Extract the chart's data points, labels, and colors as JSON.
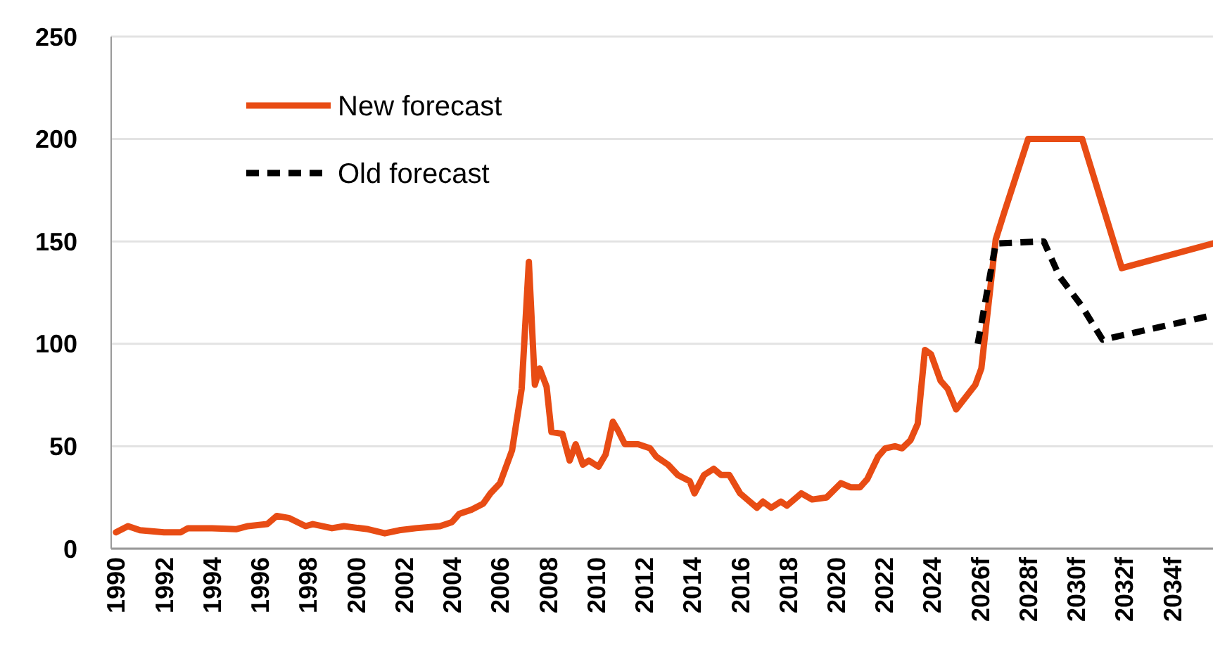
{
  "chart_data": {
    "type": "line",
    "xlim": [
      1989.8,
      2035.7
    ],
    "ylim": [
      0,
      250
    ],
    "yticks": [
      0,
      50,
      100,
      150,
      200,
      250
    ],
    "xticks": [
      1990,
      1992,
      1994,
      1996,
      1998,
      2000,
      2002,
      2004,
      2006,
      2008,
      2010,
      2012,
      2014,
      2016,
      2018,
      2020,
      2022,
      2024,
      {
        "value": 2026,
        "label": "2026f"
      },
      {
        "value": 2028,
        "label": "2028f"
      },
      {
        "value": 2030,
        "label": "2030f"
      },
      {
        "value": 2032,
        "label": "2032f"
      },
      {
        "value": 2034,
        "label": "2034f"
      }
    ],
    "grid": "y",
    "legend": "top left",
    "series": [
      {
        "name": "New forecast",
        "color": "#e84c14",
        "line_style": "solid",
        "x": [
          1990,
          1990.5,
          1991,
          1992,
          1992.7,
          1993,
          1994,
          1995,
          1995.5,
          1996.3,
          1996.7,
          1997.2,
          1997.9,
          1998.2,
          1999,
          1999.5,
          2000.5,
          2001.2,
          2001.8,
          2002.5,
          2003.5,
          2004,
          2004.3,
          2004.8,
          2005.3,
          2005.6,
          2006,
          2006.5,
          2006.9,
          2007.2,
          2007.45,
          2007.65,
          2007.94,
          2008.14,
          2008.6,
          2008.9,
          2009.15,
          2009.45,
          2009.7,
          2010.1,
          2010.4,
          2010.7,
          2010.9,
          2011.2,
          2011.75,
          2012.25,
          2012.5,
          2013,
          2013.4,
          2013.9,
          2014.1,
          2014.5,
          2014.9,
          2015.2,
          2015.55,
          2016,
          2016.3,
          2016.7,
          2016.95,
          2017.3,
          2017.7,
          2017.95,
          2018.25,
          2018.55,
          2019,
          2019.6,
          2020.2,
          2020.6,
          2021,
          2021.3,
          2021.75,
          2022.05,
          2022.45,
          2022.75,
          2023.1,
          2023.4,
          2023.7,
          2023.95,
          2024.35,
          2024.65,
          2025,
          2025.6,
          2025.8,
          2026.05,
          2026.65,
          2027,
          2028,
          2030.25,
          2031.9,
          2035.7
        ],
        "values": [
          8,
          11,
          9,
          8,
          8,
          10,
          10,
          9.5,
          11,
          12,
          16,
          15,
          11,
          12,
          10,
          11,
          9.5,
          7.5,
          9,
          10,
          11,
          13,
          17,
          19,
          22,
          27,
          32,
          48,
          78,
          140,
          80,
          88,
          79,
          57,
          56,
          43,
          51,
          41,
          43,
          40,
          46,
          62,
          58,
          51,
          51,
          49,
          45,
          41,
          36,
          33,
          27,
          36,
          39,
          36,
          36,
          27,
          24,
          20,
          23,
          20,
          23,
          21,
          24,
          27,
          24,
          25,
          32,
          30,
          30,
          34,
          45,
          49,
          50,
          49,
          53,
          61,
          97,
          95,
          82,
          78,
          68,
          77,
          80,
          88,
          151,
          164,
          200,
          200,
          137,
          149
        ]
      },
      {
        "name": "Old forecast",
        "color": "#000000",
        "line_style": "dashed",
        "x": [
          2025.9,
          2026.65,
          2028.65,
          2029.3,
          2030.2,
          2031.1,
          2035.7
        ],
        "values": [
          100,
          149,
          150,
          133,
          119,
          102,
          114
        ]
      }
    ]
  }
}
